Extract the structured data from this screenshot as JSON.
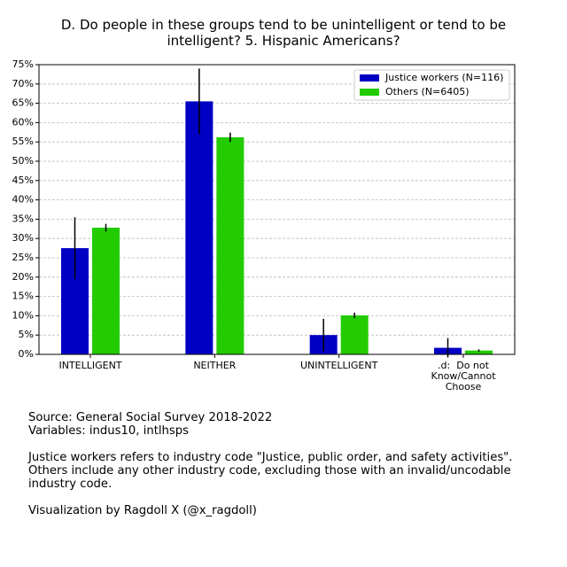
{
  "chart_data": {
    "type": "bar",
    "title": "D. Do people in these groups tend to be unintelligent or tend to be intelligent? 5. Hispanic Americans?",
    "categories": [
      "INTELLIGENT",
      "NEITHER",
      "UNINTELLIGENT",
      ".d:  Do not Know/Cannot Choose"
    ],
    "series": [
      {
        "name": "Justice workers (N=116)",
        "color": "#0000c4",
        "values": [
          27.5,
          65.5,
          5.0,
          1.7
        ],
        "errors": [
          8.0,
          8.5,
          4.2,
          2.5
        ]
      },
      {
        "name": "Others (N=6405)",
        "color": "#22cc00",
        "values": [
          32.8,
          56.2,
          10.1,
          1.0
        ],
        "errors": [
          1.0,
          1.2,
          0.7,
          0.3
        ]
      }
    ],
    "ylim": [
      0,
      75
    ],
    "yticks": [
      {
        "value": 0,
        "label": "0%"
      },
      {
        "value": 5,
        "label": "5%"
      },
      {
        "value": 10,
        "label": "10%"
      },
      {
        "value": 15,
        "label": "15%"
      },
      {
        "value": 20,
        "label": "20%"
      },
      {
        "value": 25,
        "label": "25%"
      },
      {
        "value": 30,
        "label": "30%"
      },
      {
        "value": 35,
        "label": "35%"
      },
      {
        "value": 40,
        "label": "40%"
      },
      {
        "value": 45,
        "label": "45%"
      },
      {
        "value": 50,
        "label": "50%"
      },
      {
        "value": 55,
        "label": "55%"
      },
      {
        "value": 60,
        "label": "60%"
      },
      {
        "value": 65,
        "label": "65%"
      },
      {
        "value": 70,
        "label": "70%"
      },
      {
        "value": 75,
        "label": "75%"
      }
    ],
    "grid": true,
    "legend": "upper right",
    "notes": [
      [
        "Source: General Social Survey 2018-2022",
        "Variables: indus10, intlhsps"
      ],
      [
        "Justice workers refers to industry code \"Justice, public order, and safety activities\". Others include any other industry code, excluding those with an invalid/uncodable industry code."
      ],
      [
        "Visualization by Ragdoll X (@x_ragdoll)"
      ]
    ]
  }
}
